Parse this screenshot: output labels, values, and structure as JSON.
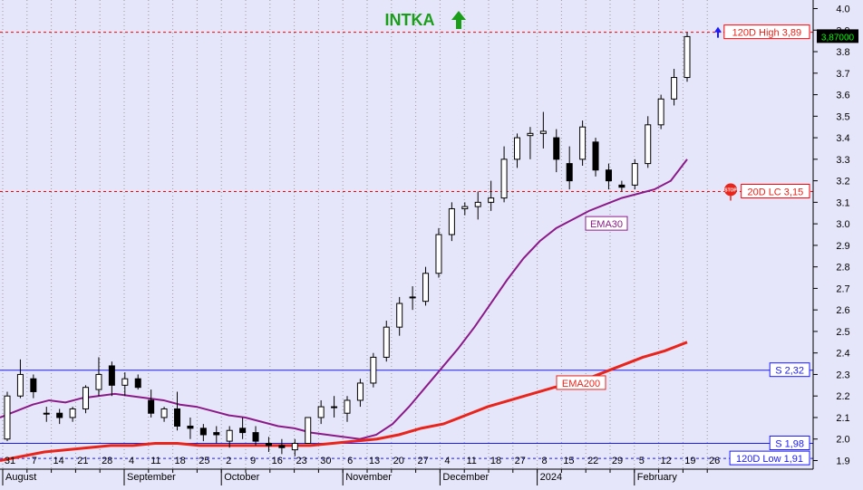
{
  "chart_data": {
    "type": "candlestick",
    "title": "INTKA",
    "trend_arrow": "up-arrow-icon",
    "y_axis": {
      "ticks": [
        "1.9",
        "2.0",
        "2.1",
        "2.2",
        "2.3",
        "2.4",
        "2.5",
        "2.6",
        "2.7",
        "2.8",
        "2.9",
        "3.0",
        "3.1",
        "3.2",
        "3.3",
        "3.4",
        "3.5",
        "3.6",
        "3.7",
        "3.8",
        "3.9",
        "4.0"
      ],
      "ylim": [
        1.86,
        4.04
      ],
      "side": "right"
    },
    "x_axis": {
      "day_ticks": [
        "31",
        "7",
        "14",
        "21",
        "28",
        "4",
        "11",
        "18",
        "25",
        "2",
        "9",
        "16",
        "23",
        "30",
        "6",
        "13",
        "20",
        "27",
        "4",
        "11",
        "18",
        "27",
        "8",
        "15",
        "22",
        "29",
        "5",
        "12",
        "19",
        "26"
      ],
      "months": [
        "August",
        "September",
        "October",
        "November",
        "December",
        "2024",
        "February"
      ]
    },
    "last_price_label": "3,87000",
    "horizontal_lines": [
      {
        "label": "120D High 3,89",
        "value": 3.89,
        "style": "dashed",
        "color": "#ff0000"
      },
      {
        "label": "20D LC 3,15",
        "value": 3.15,
        "style": "dashed",
        "color": "#ff0000"
      },
      {
        "label": "S 2,32",
        "value": 2.32,
        "style": "solid",
        "color": "#1a1aff"
      },
      {
        "label": "S 1,98",
        "value": 1.98,
        "style": "solid",
        "color": "#1a1aff"
      },
      {
        "label": "120D Low 1,91",
        "value": 1.91,
        "style": "dashed",
        "color": "#1a1aff"
      }
    ],
    "moving_averages": [
      {
        "name": "EMA30",
        "color": "#8b1a89",
        "values": [
          2.1,
          2.13,
          2.16,
          2.18,
          2.17,
          2.19,
          2.2,
          2.21,
          2.2,
          2.19,
          2.18,
          2.16,
          2.15,
          2.13,
          2.11,
          2.1,
          2.08,
          2.06,
          2.05,
          2.03,
          2.02,
          2.01,
          2.0,
          2.02,
          2.07,
          2.15,
          2.24,
          2.33,
          2.42,
          2.52,
          2.63,
          2.74,
          2.84,
          2.92,
          2.98,
          3.02,
          3.06,
          3.09,
          3.12,
          3.14,
          3.16,
          3.2,
          3.3
        ]
      },
      {
        "name": "EMA200",
        "color": "#e8241b",
        "values": [
          1.9,
          1.92,
          1.94,
          1.95,
          1.96,
          1.97,
          1.97,
          1.98,
          1.98,
          1.97,
          1.97,
          1.97,
          1.97,
          1.97,
          1.97,
          1.98,
          1.99,
          2.0,
          2.02,
          2.05,
          2.07,
          2.11,
          2.15,
          2.18,
          2.21,
          2.24,
          2.26,
          2.3,
          2.34,
          2.38,
          2.41,
          2.45
        ]
      }
    ],
    "candles_ohlc": [
      [
        2.0,
        2.22,
        1.99,
        2.2
      ],
      [
        2.2,
        2.37,
        2.19,
        2.3
      ],
      [
        2.28,
        2.3,
        2.19,
        2.22
      ],
      [
        2.12,
        2.15,
        2.08,
        2.12
      ],
      [
        2.12,
        2.14,
        2.07,
        2.1
      ],
      [
        2.1,
        2.15,
        2.08,
        2.14
      ],
      [
        2.14,
        2.25,
        2.12,
        2.24
      ],
      [
        2.23,
        2.38,
        2.2,
        2.3
      ],
      [
        2.34,
        2.36,
        2.2,
        2.25
      ],
      [
        2.25,
        2.31,
        2.2,
        2.28
      ],
      [
        2.28,
        2.3,
        2.23,
        2.24
      ],
      [
        2.18,
        2.23,
        2.1,
        2.12
      ],
      [
        2.1,
        2.15,
        2.08,
        2.14
      ],
      [
        2.14,
        2.22,
        2.04,
        2.06
      ],
      [
        2.06,
        2.1,
        2.0,
        2.05
      ],
      [
        2.05,
        2.07,
        1.99,
        2.02
      ],
      [
        2.03,
        2.06,
        1.98,
        2.02
      ],
      [
        1.99,
        2.06,
        1.96,
        2.04
      ],
      [
        2.05,
        2.1,
        2.0,
        2.03
      ],
      [
        2.03,
        2.06,
        1.97,
        1.99
      ],
      [
        1.98,
        2.01,
        1.94,
        1.97
      ],
      [
        1.97,
        2.0,
        1.93,
        1.96
      ],
      [
        1.95,
        2.0,
        1.92,
        1.98
      ],
      [
        1.98,
        2.1,
        1.98,
        2.1
      ],
      [
        2.1,
        2.18,
        2.07,
        2.15
      ],
      [
        2.15,
        2.2,
        2.1,
        2.15
      ],
      [
        2.12,
        2.2,
        2.08,
        2.18
      ],
      [
        2.18,
        2.28,
        2.15,
        2.26
      ],
      [
        2.26,
        2.4,
        2.24,
        2.38
      ],
      [
        2.38,
        2.55,
        2.36,
        2.52
      ],
      [
        2.52,
        2.66,
        2.48,
        2.63
      ],
      [
        2.66,
        2.71,
        2.6,
        2.66
      ],
      [
        2.64,
        2.8,
        2.62,
        2.77
      ],
      [
        2.77,
        2.98,
        2.75,
        2.95
      ],
      [
        2.95,
        3.1,
        2.92,
        3.07
      ],
      [
        3.07,
        3.1,
        3.04,
        3.08
      ],
      [
        3.08,
        3.15,
        3.02,
        3.1
      ],
      [
        3.1,
        3.2,
        3.06,
        3.12
      ],
      [
        3.12,
        3.36,
        3.1,
        3.3
      ],
      [
        3.3,
        3.42,
        3.26,
        3.4
      ],
      [
        3.41,
        3.45,
        3.3,
        3.42
      ],
      [
        3.42,
        3.52,
        3.35,
        3.43
      ],
      [
        3.4,
        3.44,
        3.24,
        3.3
      ],
      [
        3.28,
        3.36,
        3.16,
        3.2
      ],
      [
        3.3,
        3.48,
        3.27,
        3.45
      ],
      [
        3.38,
        3.4,
        3.22,
        3.25
      ],
      [
        3.25,
        3.28,
        3.16,
        3.2
      ],
      [
        3.18,
        3.2,
        3.15,
        3.17
      ],
      [
        3.18,
        3.3,
        3.16,
        3.28
      ],
      [
        3.28,
        3.5,
        3.26,
        3.46
      ],
      [
        3.46,
        3.6,
        3.44,
        3.58
      ],
      [
        3.58,
        3.72,
        3.55,
        3.68
      ],
      [
        3.68,
        3.89,
        3.66,
        3.87
      ]
    ],
    "annotation_labels": [
      "EMA30",
      "EMA200"
    ]
  }
}
